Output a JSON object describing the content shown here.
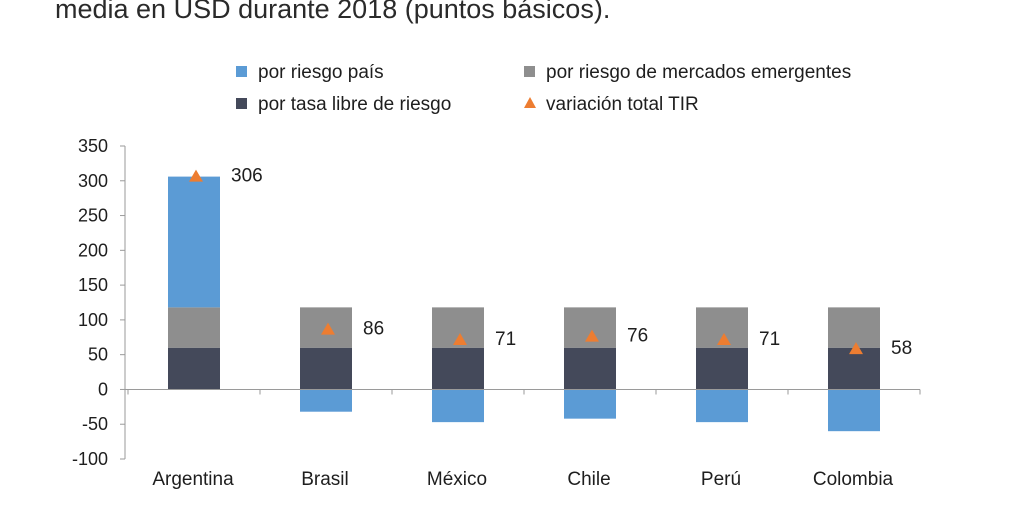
{
  "title": "media en USD durante 2018 (puntos básicos).",
  "chart_data": {
    "type": "bar",
    "stacked": true,
    "categories": [
      "Argentina",
      "Brasil",
      "México",
      "Chile",
      "Perú",
      "Colombia"
    ],
    "series": [
      {
        "name": "por tasa libre de riesgo",
        "color": "#44495a",
        "values": [
          60,
          60,
          60,
          60,
          60,
          60
        ]
      },
      {
        "name": "por riesgo de mercados emergentes",
        "color": "#8e8e8e",
        "values": [
          58,
          58,
          58,
          58,
          58,
          58
        ]
      },
      {
        "name": "por riesgo país",
        "color": "#5b9bd5",
        "values": [
          188,
          -32,
          -47,
          -42,
          -47,
          -60
        ]
      }
    ],
    "total_marker": {
      "name": "variación total TIR",
      "color": "#ed7d31",
      "values": [
        306,
        86,
        71,
        76,
        71,
        58
      ],
      "labels": [
        "306",
        "86",
        "71",
        "76",
        "71",
        "58"
      ]
    },
    "legend_order": [
      "por riesgo país",
      "por riesgo de mercados emergentes",
      "por tasa libre de riesgo",
      "variación total TIR"
    ],
    "legend_position": "top",
    "y_ticks": [
      "350",
      "300",
      "250",
      "200",
      "150",
      "100",
      "50",
      "0",
      "-50",
      "-100"
    ],
    "ylim": [
      -100,
      350
    ],
    "grid": false
  }
}
